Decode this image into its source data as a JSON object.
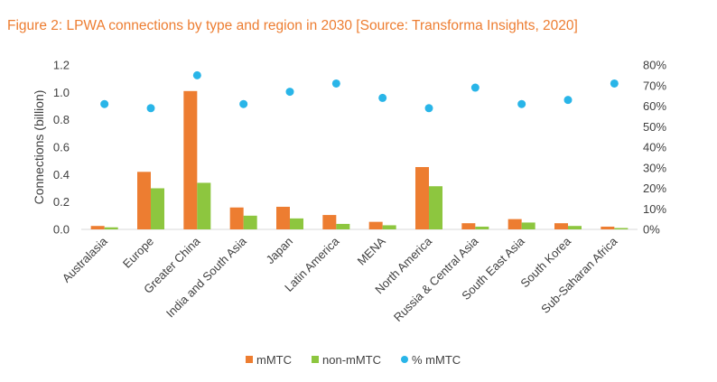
{
  "chart_data": {
    "type": "bar",
    "title": "Figure 2: LPWA connections by type and region in 2030 [Source: Transforma Insights, 2020]",
    "ylabel": "Connections (billion)",
    "xlabel": "",
    "ylim": [
      0,
      1.2
    ],
    "y_ticks": [
      "0.0",
      "0.2",
      "0.4",
      "0.6",
      "0.8",
      "1.0",
      "1.2"
    ],
    "y2lim": [
      0,
      80
    ],
    "y2_ticks": [
      "0%",
      "10%",
      "20%",
      "30%",
      "40%",
      "50%",
      "60%",
      "70%",
      "80%"
    ],
    "grid": false,
    "legend_position": "bottom",
    "categories": [
      "Australasia",
      "Europe",
      "Greater China",
      "India and South Asia",
      "Japan",
      "Latin America",
      "MENA",
      "North America",
      "Russia & Central Asia",
      "South East Asia",
      "South Korea",
      "Sub-Saharan Africa"
    ],
    "series": [
      {
        "name": "mMTC",
        "type": "bar",
        "axis": "left",
        "color": "#ED7D31",
        "values": [
          0.025,
          0.42,
          1.01,
          0.16,
          0.165,
          0.105,
          0.055,
          0.455,
          0.045,
          0.075,
          0.045,
          0.02
        ]
      },
      {
        "name": "non-mMTC",
        "type": "bar",
        "axis": "left",
        "color": "#8DC63F",
        "values": [
          0.015,
          0.3,
          0.34,
          0.1,
          0.08,
          0.04,
          0.03,
          0.315,
          0.02,
          0.05,
          0.025,
          0.01
        ]
      },
      {
        "name": "% mMTC",
        "type": "scatter",
        "axis": "right",
        "color": "#29B5E8",
        "values": [
          61,
          59,
          75,
          61,
          67,
          71,
          64,
          59,
          69,
          61,
          63,
          71
        ]
      }
    ]
  }
}
